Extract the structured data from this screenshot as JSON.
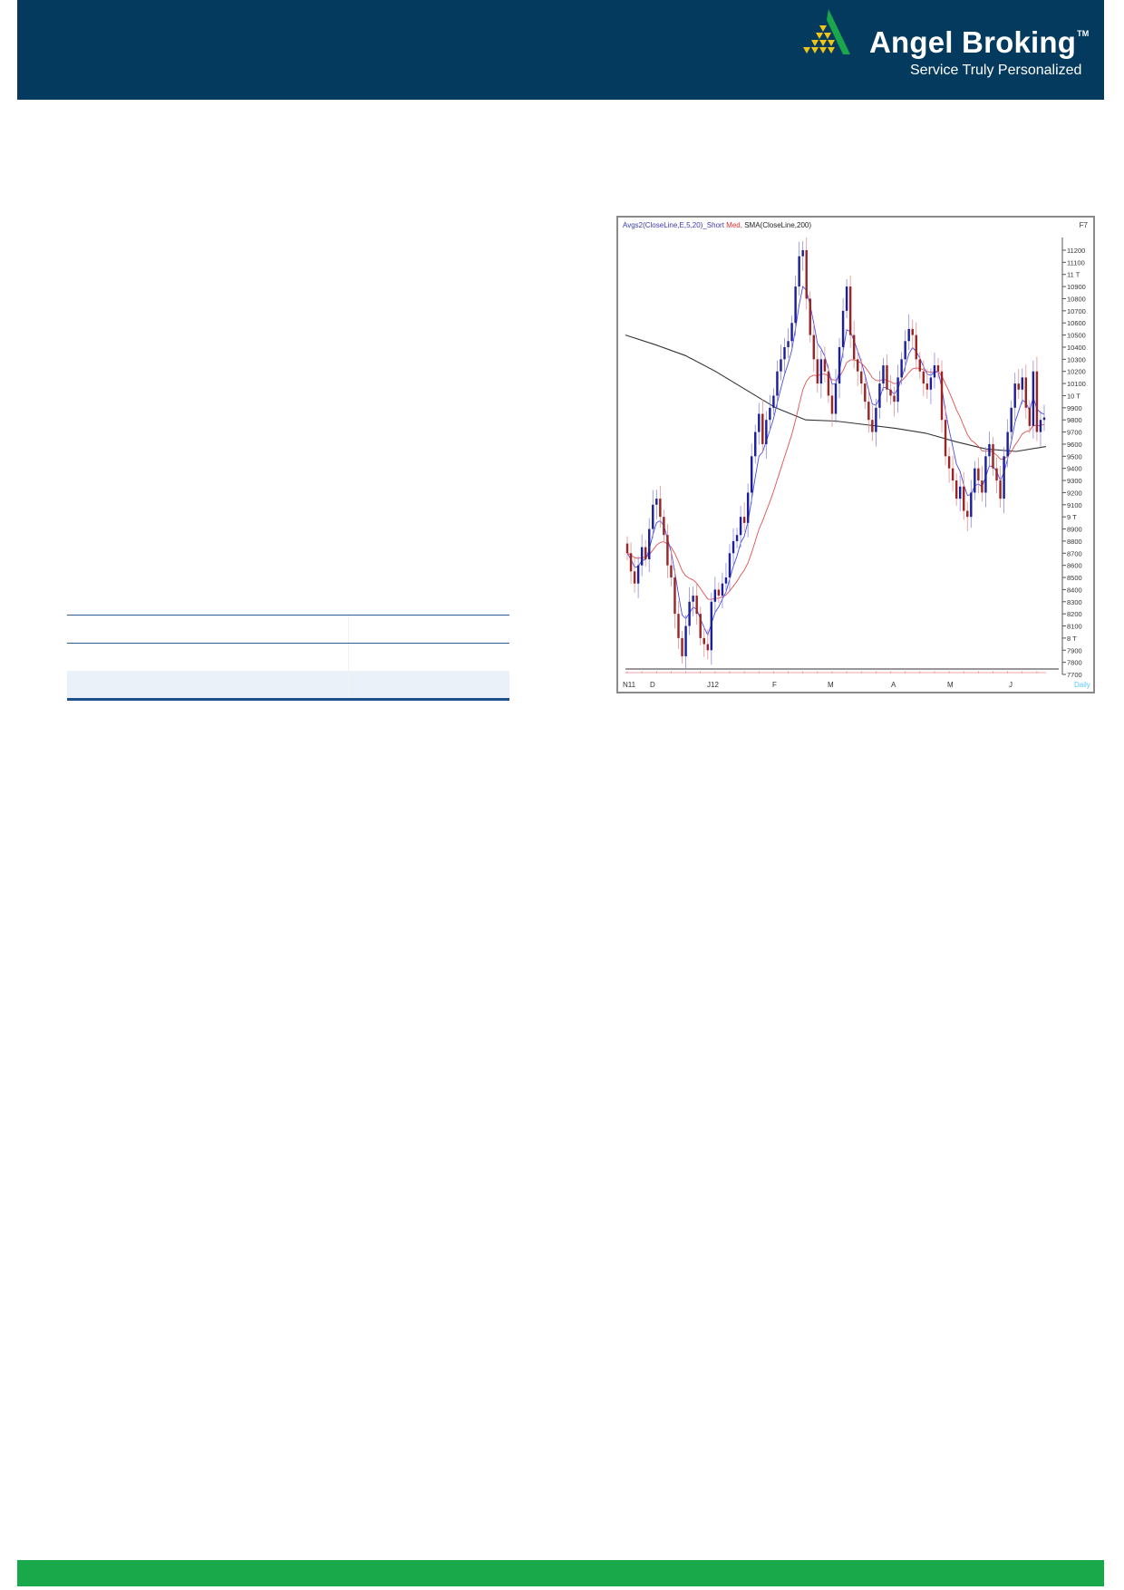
{
  "header": {
    "brand": "Angel Broking",
    "trademark": "TM",
    "tagline": "Service Truly Personalized",
    "colors": {
      "band": "#053a5f",
      "logo_green": "#1aa64a",
      "logo_yellow": "#f2c418"
    }
  },
  "footer": {
    "color": "#19a94b"
  },
  "table": {
    "rows": [
      [
        "",
        ""
      ],
      [
        "",
        ""
      ],
      [
        "",
        ""
      ]
    ]
  },
  "chart_data": {
    "type": "candlestick",
    "legend": {
      "avgs": "Avgs2(CloseLine,E,5,20)_Short",
      "med": "Med,",
      "sma": "SMA(CloseLine,200)",
      "key": "F7"
    },
    "period_label": "Daily",
    "x_ticks": [
      "N11",
      "D",
      "J12",
      "F",
      "M",
      "A",
      "M",
      "J"
    ],
    "y_ticks": [
      "11200",
      "11100",
      "11 T",
      "10900",
      "10800",
      "10700",
      "10600",
      "10500",
      "10400",
      "10300",
      "10200",
      "10100",
      "10 T",
      "9900",
      "9800",
      "9700",
      "9600",
      "9500",
      "9400",
      "9300",
      "9200",
      "9100",
      "9 T",
      "8900",
      "8800",
      "8700",
      "8600",
      "8500",
      "8400",
      "8300",
      "8200",
      "8100",
      "8 T",
      "7900",
      "7800",
      "7700"
    ],
    "ylim": [
      7700,
      11200
    ],
    "closes": [
      8700,
      8550,
      8450,
      8600,
      8750,
      8650,
      8900,
      9100,
      9150,
      9000,
      8850,
      8600,
      8500,
      8200,
      8000,
      7850,
      8100,
      8300,
      8350,
      8200,
      8000,
      7950,
      7900,
      8300,
      8400,
      8350,
      8450,
      8500,
      8700,
      8800,
      8850,
      9000,
      8950,
      9200,
      9500,
      9700,
      9850,
      9600,
      9800,
      9900,
      10000,
      10200,
      10300,
      10400,
      10450,
      10600,
      10900,
      11150,
      11200,
      10800,
      10500,
      10300,
      10100,
      10300,
      10200,
      10000,
      9850,
      10100,
      10400,
      10700,
      10900,
      10500,
      10300,
      10200,
      10100,
      9950,
      9800,
      9700,
      9900,
      10100,
      10250,
      10050,
      10000,
      9950,
      10150,
      10300,
      10450,
      10550,
      10500,
      10300,
      10200,
      10100,
      10050,
      10150,
      10250,
      10200,
      9800,
      9500,
      9400,
      9300,
      9150,
      9250,
      9050,
      9000,
      9200,
      9400,
      9300,
      9200,
      9500,
      9600,
      9400,
      9300,
      9150,
      9500,
      9700,
      9900,
      10100,
      10050,
      10150,
      9900,
      9750,
      10200,
      9700,
      9800,
      9820
    ],
    "sma200": [
      10500,
      10420,
      10330,
      10200,
      10050,
      9900,
      9800,
      9790,
      9760,
      9730,
      9690,
      9620,
      9560,
      9540,
      9580
    ],
    "colors": {
      "up": "#1b1f9a",
      "down": "#9b2424",
      "ema5": "#4a4ae0",
      "ema20": "#e05050",
      "sma200": "#333333",
      "daily": "#56c8f0"
    }
  }
}
